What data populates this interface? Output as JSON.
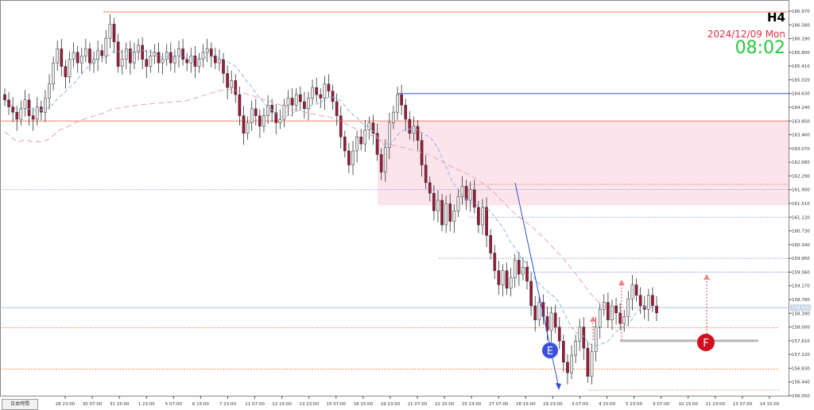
{
  "header": {
    "timeframe": "H4",
    "date": "2024/12/09 Mon",
    "time": "08:02"
  },
  "timezone_label": "日本時間",
  "chart_data": {
    "type": "candlestick",
    "y_ticks": [
      "166.970",
      "166.580",
      "166.190",
      "165.800",
      "165.410",
      "165.020",
      "164.630",
      "164.240",
      "163.850",
      "163.460",
      "163.070",
      "162.680",
      "162.290",
      "161.900",
      "161.510",
      "161.120",
      "160.730",
      "160.340",
      "159.950",
      "159.560",
      "159.170",
      "158.780",
      "158.390",
      "158.000",
      "157.610",
      "157.220",
      "156.830",
      "156.440",
      "156.050"
    ],
    "x_ticks": [
      "28 23:00",
      "30 07:00",
      "31 15:00",
      "1 23:00",
      "5 07:00",
      "6 15:00",
      "7 23:00",
      "11 07:00",
      "12 15:00",
      "13 23:00",
      "15 07:00",
      "18 15:00",
      "19 23:00",
      "21 07:00",
      "22 15:00",
      "25 23:00",
      "27 07:00",
      "28 15:00",
      "29 23:00",
      "3 07:00",
      "4 15:00",
      "5 23:00",
      "9 07:00",
      "10 15:00",
      "11 23:00",
      "13 07:00",
      "14 15:00"
    ],
    "ylim": [
      156.05,
      166.97
    ],
    "current_price": "158.530",
    "closes": [
      164.45,
      164.25,
      164.1,
      163.9,
      164.2,
      164.45,
      164.0,
      163.9,
      164.25,
      164.1,
      164.5,
      164.9,
      165.5,
      165.9,
      165.4,
      165.1,
      165.6,
      165.8,
      165.5,
      165.7,
      165.9,
      165.5,
      165.6,
      165.85,
      165.7,
      166.2,
      166.6,
      166.1,
      165.4,
      165.6,
      165.9,
      165.5,
      165.8,
      166.0,
      165.6,
      165.4,
      165.7,
      165.8,
      165.5,
      165.6,
      165.8,
      165.5,
      165.7,
      165.9,
      165.6,
      165.5,
      165.7,
      165.4,
      165.6,
      165.8,
      165.9,
      165.7,
      165.5,
      165.6,
      165.2,
      164.8,
      165.0,
      164.6,
      164.0,
      163.5,
      163.8,
      164.2,
      164.0,
      163.7,
      164.0,
      164.3,
      164.1,
      163.8,
      163.9,
      164.3,
      164.5,
      164.3,
      164.6,
      164.4,
      164.2,
      164.5,
      164.8,
      164.6,
      164.5,
      164.9,
      164.7,
      164.4,
      164.0,
      163.4,
      163.0,
      162.6,
      163.0,
      163.4,
      163.2,
      163.6,
      163.8,
      163.5,
      162.9,
      162.4,
      163.1,
      163.8,
      164.1,
      164.6,
      164.3,
      163.9,
      163.5,
      163.7,
      163.3,
      162.6,
      162.1,
      161.8,
      161.3,
      161.6,
      160.9,
      161.5,
      161.0,
      161.3,
      161.7,
      162.0,
      161.6,
      161.9,
      161.4,
      160.9,
      161.4,
      160.6,
      160.1,
      159.6,
      159.2,
      159.6,
      159.1,
      159.4,
      159.9,
      159.5,
      159.7,
      159.3,
      158.6,
      158.2,
      158.7,
      158.3,
      157.9,
      158.4,
      158.0,
      157.6,
      157.0,
      156.7,
      157.2,
      157.6,
      158.0,
      157.4,
      156.6,
      157.3,
      158.0,
      158.5,
      158.7,
      158.2,
      158.6,
      158.4,
      158.1,
      158.3,
      158.8,
      159.2,
      158.9,
      158.6,
      158.5,
      158.9,
      158.6,
      158.4
    ]
  },
  "levels": {
    "top_line": "166.970",
    "blue_line": "164.630",
    "orange_line": "163.850",
    "dotted_blue_1": "161.900",
    "dotted_blue_2": "161.120",
    "dotted_blue_3": "159.950",
    "dotted_blue_4": "159.560",
    "gray_bar": "157.610",
    "orange_dotted_1": "158.000",
    "orange_dotted_2": "156.830",
    "bottom_line": "156.050"
  },
  "annotations": {
    "e_label": "E",
    "f_label": "F"
  },
  "colors": {
    "bull": "#e8e8e8",
    "bear": "#9a1a3a",
    "wick": "#333333",
    "zone": "#fce4ec",
    "ma_fast": "#8fb3e0",
    "ma_slow": "#e8a0b0",
    "blue_line": "#3050d0",
    "orange_line": "#f08060"
  }
}
